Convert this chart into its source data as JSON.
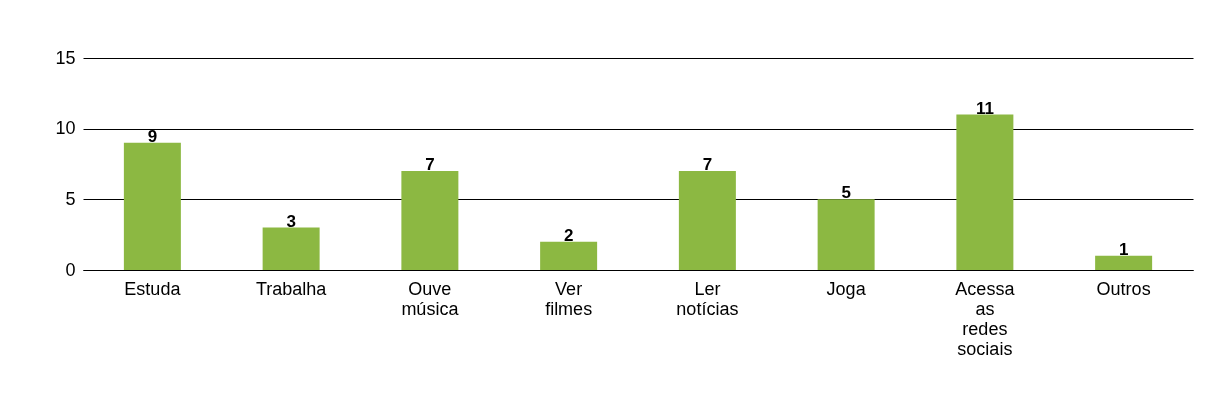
{
  "chart_data": {
    "type": "bar",
    "categories": [
      "Estuda",
      "Trabalha",
      "Ouve música",
      "Ver filmes",
      "Ler notícias",
      "Joga",
      "Acessa as redes sociais",
      "Outros"
    ],
    "values": [
      9,
      3,
      7,
      2,
      7,
      5,
      11,
      1
    ],
    "color": "#8cb842",
    "ylim": [
      0,
      15
    ],
    "yticks": [
      0,
      5,
      10,
      15
    ],
    "grid": "y",
    "data_labels": true
  }
}
